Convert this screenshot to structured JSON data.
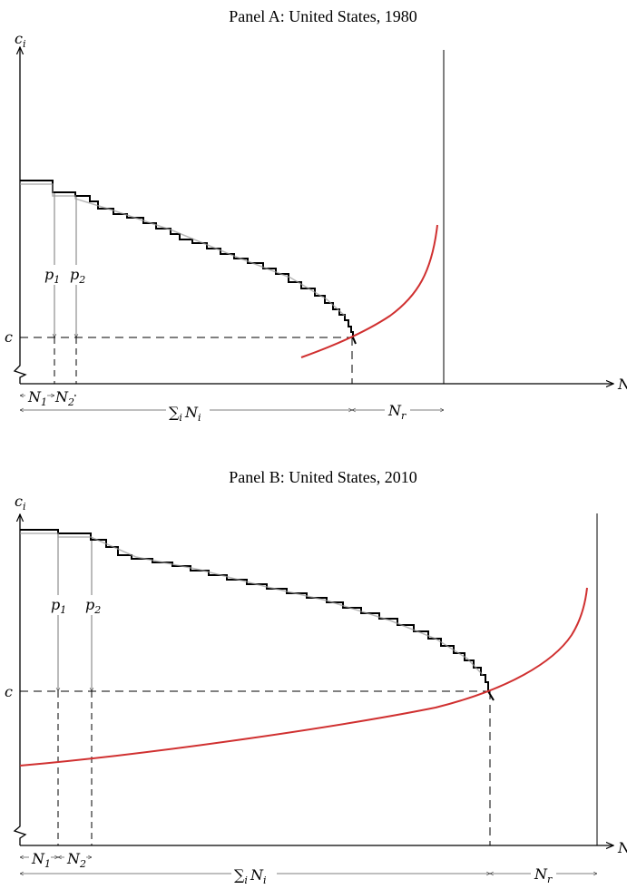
{
  "panels": [
    {
      "title": "Panel A: United States, 1980",
      "y_axis_label": "c",
      "y_axis_label_sub": "i",
      "x_axis_label": "N",
      "c_label": "c",
      "p1_label": "p",
      "p1_sub": "1",
      "p2_label": "p",
      "p2_sub": "2",
      "n1_label": "N",
      "n1_sub": "1",
      "n2_label": "N",
      "n2_sub": "2",
      "sum_label": "∑",
      "sum_sub": "i",
      "sum_var": "N",
      "sum_var_sub": "i",
      "nr_label": "N",
      "nr_sub": "r"
    },
    {
      "title": "Panel B: United States, 2010",
      "y_axis_label": "c",
      "y_axis_label_sub": "i",
      "x_axis_label": "N",
      "c_label": "c",
      "p1_label": "p",
      "p1_sub": "1",
      "p2_label": "p",
      "p2_sub": "2",
      "n1_label": "N",
      "n1_sub": "1",
      "n2_label": "N",
      "n2_sub": "2",
      "sum_label": "∑",
      "sum_sub": "i",
      "sum_var": "N",
      "sum_var_sub": "i",
      "nr_label": "N",
      "nr_sub": "r"
    }
  ],
  "colors": {
    "supply_curve": "#d03030",
    "step_curve": "#000000",
    "step_shadow": "#999999",
    "axis": "#000000"
  }
}
